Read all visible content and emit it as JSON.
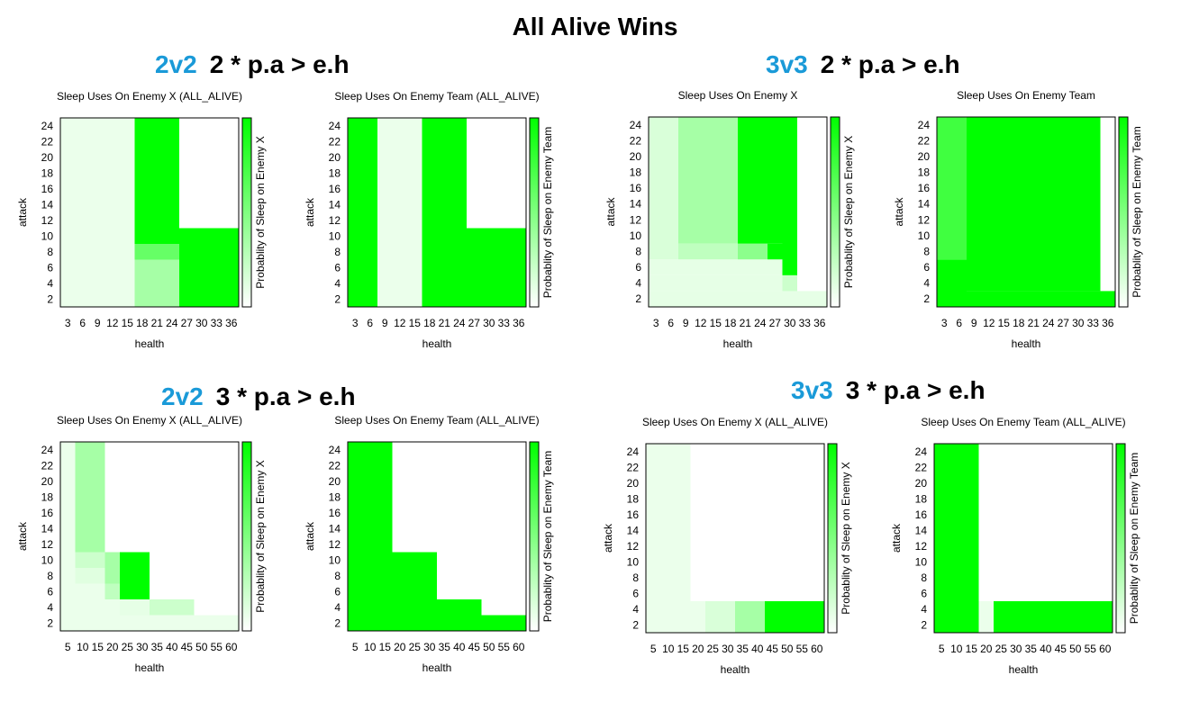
{
  "page": {
    "title": "All Alive Wins"
  },
  "colors": {
    "accent": "#1a9ad8",
    "max": "#00ff00",
    "min": "#ffffff"
  },
  "groups": [
    {
      "config": "2v2",
      "condition": "2 * p.a > e.h"
    },
    {
      "config": "3v3",
      "condition": "2 * p.a > e.h"
    },
    {
      "config": "2v2",
      "condition": "3 * p.a > e.h"
    },
    {
      "config": "3v3",
      "condition": "3 * p.a > e.h"
    }
  ],
  "chart_data": [
    {
      "type": "heatmap",
      "title": "Sleep Uses On Enemy X (ALL_ALIVE)",
      "xlabel": "health",
      "ylabel": "attack",
      "colorbar_label": "Probablity of Sleep on Enemy X",
      "xticks": [
        "3",
        "6",
        "9",
        "12",
        "15",
        "18",
        "21",
        "24",
        "27",
        "30",
        "33",
        "36"
      ],
      "yticks": [
        "2",
        "4",
        "6",
        "8",
        "10",
        "12",
        "14",
        "16",
        "18",
        "20",
        "22",
        "24"
      ],
      "xlim": [
        1.5,
        37.5
      ],
      "ylim": [
        1,
        25
      ],
      "clim": [
        0,
        1
      ],
      "cells": [
        {
          "x0": 1.5,
          "x1": 16.5,
          "y0": 1,
          "y1": 25,
          "v": 0.08
        },
        {
          "x0": 16.5,
          "x1": 25.5,
          "y0": 9,
          "y1": 25,
          "v": 1
        },
        {
          "x0": 16.5,
          "x1": 25.5,
          "y0": 7,
          "y1": 9,
          "v": 0.6
        },
        {
          "x0": 16.5,
          "x1": 25.5,
          "y0": 1,
          "y1": 7,
          "v": 0.35
        },
        {
          "x0": 25.5,
          "x1": 37.5,
          "y0": 1,
          "y1": 11,
          "v": 1
        }
      ]
    },
    {
      "type": "heatmap",
      "title": "Sleep Uses On Enemy Team (ALL_ALIVE)",
      "xlabel": "health",
      "ylabel": "attack",
      "colorbar_label": "Probablity of Sleep on Enemy Team",
      "xticks": [
        "3",
        "6",
        "9",
        "12",
        "15",
        "18",
        "21",
        "24",
        "27",
        "30",
        "33",
        "36"
      ],
      "yticks": [
        "2",
        "4",
        "6",
        "8",
        "10",
        "12",
        "14",
        "16",
        "18",
        "20",
        "22",
        "24"
      ],
      "xlim": [
        1.5,
        37.5
      ],
      "ylim": [
        1,
        25
      ],
      "clim": [
        0,
        1
      ],
      "cells": [
        {
          "x0": 1.5,
          "x1": 7.5,
          "y0": 1,
          "y1": 25,
          "v": 1
        },
        {
          "x0": 7.5,
          "x1": 16.5,
          "y0": 1,
          "y1": 25,
          "v": 0.08
        },
        {
          "x0": 16.5,
          "x1": 25.5,
          "y0": 1,
          "y1": 25,
          "v": 1
        },
        {
          "x0": 25.5,
          "x1": 37.5,
          "y0": 1,
          "y1": 11,
          "v": 1
        }
      ]
    },
    {
      "type": "heatmap",
      "title": "Sleep Uses On Enemy X",
      "xlabel": "health",
      "ylabel": "attack",
      "colorbar_label": "Probablity of Sleep on Enemy X",
      "xticks": [
        "3",
        "6",
        "9",
        "12",
        "15",
        "18",
        "21",
        "24",
        "27",
        "30",
        "33",
        "36"
      ],
      "yticks": [
        "2",
        "4",
        "6",
        "8",
        "10",
        "12",
        "14",
        "16",
        "18",
        "20",
        "22",
        "24"
      ],
      "xlim": [
        1.5,
        37.5
      ],
      "ylim": [
        1,
        25
      ],
      "clim": [
        0,
        1
      ],
      "cells": [
        {
          "x0": 1.5,
          "x1": 37.5,
          "y0": 1,
          "y1": 3,
          "v": 0.1
        },
        {
          "x0": 1.5,
          "x1": 31.5,
          "y0": 3,
          "y1": 5,
          "v": 0.1
        },
        {
          "x0": 1.5,
          "x1": 28.5,
          "y0": 5,
          "y1": 7,
          "v": 0.1
        },
        {
          "x0": 28.5,
          "x1": 31.5,
          "y0": 3,
          "y1": 5,
          "v": 0.2
        },
        {
          "x0": 28.5,
          "x1": 31.5,
          "y0": 5,
          "y1": 25,
          "v": 1
        },
        {
          "x0": 1.5,
          "x1": 7.5,
          "y0": 7,
          "y1": 25,
          "v": 0.15
        },
        {
          "x0": 7.5,
          "x1": 19.5,
          "y0": 7,
          "y1": 9,
          "v": 0.25
        },
        {
          "x0": 19.5,
          "x1": 25.5,
          "y0": 7,
          "y1": 9,
          "v": 0.45
        },
        {
          "x0": 7.5,
          "x1": 19.5,
          "y0": 9,
          "y1": 25,
          "v": 0.35
        },
        {
          "x0": 19.5,
          "x1": 28.5,
          "y0": 9,
          "y1": 25,
          "v": 1
        },
        {
          "x0": 25.5,
          "x1": 28.5,
          "y0": 7,
          "y1": 9,
          "v": 1
        }
      ]
    },
    {
      "type": "heatmap",
      "title": "Sleep Uses On Enemy Team",
      "xlabel": "health",
      "ylabel": "attack",
      "colorbar_label": "Probablity of Sleep on Enemy Team",
      "xticks": [
        "3",
        "6",
        "9",
        "12",
        "15",
        "18",
        "21",
        "24",
        "27",
        "30",
        "33",
        "36"
      ],
      "yticks": [
        "2",
        "4",
        "6",
        "8",
        "10",
        "12",
        "14",
        "16",
        "18",
        "20",
        "22",
        "24"
      ],
      "xlim": [
        1.5,
        37.5
      ],
      "ylim": [
        1,
        25
      ],
      "clim": [
        0,
        1
      ],
      "cells": [
        {
          "x0": 1.5,
          "x1": 7.5,
          "y0": 1,
          "y1": 7,
          "v": 1
        },
        {
          "x0": 1.5,
          "x1": 7.5,
          "y0": 7,
          "y1": 25,
          "v": 0.75
        },
        {
          "x0": 7.5,
          "x1": 34.5,
          "y0": 3,
          "y1": 25,
          "v": 1
        },
        {
          "x0": 7.5,
          "x1": 37.5,
          "y0": 1,
          "y1": 3,
          "v": 1
        }
      ]
    },
    {
      "type": "heatmap",
      "title": "Sleep Uses On Enemy X (ALL_ALIVE)",
      "xlabel": "health",
      "ylabel": "attack",
      "colorbar_label": "Probablity of Sleep on Enemy X",
      "xticks": [
        "5",
        "10",
        "15",
        "20",
        "25",
        "30",
        "35",
        "40",
        "45",
        "50",
        "55",
        "60"
      ],
      "yticks": [
        "2",
        "4",
        "6",
        "8",
        "10",
        "12",
        "14",
        "16",
        "18",
        "20",
        "22",
        "24"
      ],
      "xlim": [
        2.5,
        62.5
      ],
      "ylim": [
        1,
        25
      ],
      "clim": [
        0,
        1
      ],
      "cells": [
        {
          "x0": 2.5,
          "x1": 7.5,
          "y0": 1,
          "y1": 25,
          "v": 0.08
        },
        {
          "x0": 7.5,
          "x1": 17.5,
          "y0": 11,
          "y1": 25,
          "v": 0.35
        },
        {
          "x0": 7.5,
          "x1": 17.5,
          "y0": 9,
          "y1": 11,
          "v": 0.2
        },
        {
          "x0": 7.5,
          "x1": 17.5,
          "y0": 7,
          "y1": 9,
          "v": 0.12
        },
        {
          "x0": 7.5,
          "x1": 22.5,
          "y0": 1,
          "y1": 7,
          "v": 0.08
        },
        {
          "x0": 17.5,
          "x1": 22.5,
          "y0": 7,
          "y1": 11,
          "v": 0.35
        },
        {
          "x0": 17.5,
          "x1": 22.5,
          "y0": 5,
          "y1": 7,
          "v": 0.25
        },
        {
          "x0": 22.5,
          "x1": 32.5,
          "y0": 5,
          "y1": 11,
          "v": 1
        },
        {
          "x0": 22.5,
          "x1": 32.5,
          "y0": 3,
          "y1": 5,
          "v": 0.1
        },
        {
          "x0": 32.5,
          "x1": 47.5,
          "y0": 3,
          "y1": 5,
          "v": 0.2
        },
        {
          "x0": 22.5,
          "x1": 62.5,
          "y0": 1,
          "y1": 3,
          "v": 0.08
        }
      ]
    },
    {
      "type": "heatmap",
      "title": "Sleep Uses On Enemy Team (ALL_ALIVE)",
      "xlabel": "health",
      "ylabel": "attack",
      "colorbar_label": "Probablity of Sleep on Enemy Team",
      "xticks": [
        "5",
        "10",
        "15",
        "20",
        "25",
        "30",
        "35",
        "40",
        "45",
        "50",
        "55",
        "60"
      ],
      "yticks": [
        "2",
        "4",
        "6",
        "8",
        "10",
        "12",
        "14",
        "16",
        "18",
        "20",
        "22",
        "24"
      ],
      "xlim": [
        2.5,
        62.5
      ],
      "ylim": [
        1,
        25
      ],
      "clim": [
        0,
        1
      ],
      "cells": [
        {
          "x0": 2.5,
          "x1": 17.5,
          "y0": 1,
          "y1": 25,
          "v": 1
        },
        {
          "x0": 17.5,
          "x1": 32.5,
          "y0": 1,
          "y1": 11,
          "v": 1
        },
        {
          "x0": 32.5,
          "x1": 47.5,
          "y0": 1,
          "y1": 5,
          "v": 1
        },
        {
          "x0": 47.5,
          "x1": 62.5,
          "y0": 1,
          "y1": 3,
          "v": 1
        }
      ]
    },
    {
      "type": "heatmap",
      "title": "Sleep Uses On Enemy X (ALL_ALIVE)",
      "xlabel": "health",
      "ylabel": "attack",
      "colorbar_label": "Probablity of Sleep on Enemy X",
      "xticks": [
        "5",
        "10",
        "15",
        "20",
        "25",
        "30",
        "35",
        "40",
        "45",
        "50",
        "55",
        "60"
      ],
      "yticks": [
        "2",
        "4",
        "6",
        "8",
        "10",
        "12",
        "14",
        "16",
        "18",
        "20",
        "22",
        "24"
      ],
      "xlim": [
        2.5,
        62.5
      ],
      "ylim": [
        1,
        25
      ],
      "clim": [
        0,
        1
      ],
      "cells": [
        {
          "x0": 2.5,
          "x1": 17.5,
          "y0": 5,
          "y1": 25,
          "v": 0.08
        },
        {
          "x0": 2.5,
          "x1": 22.5,
          "y0": 1,
          "y1": 5,
          "v": 0.08
        },
        {
          "x0": 22.5,
          "x1": 32.5,
          "y0": 1,
          "y1": 5,
          "v": 0.15
        },
        {
          "x0": 32.5,
          "x1": 42.5,
          "y0": 1,
          "y1": 5,
          "v": 0.35
        },
        {
          "x0": 42.5,
          "x1": 62.5,
          "y0": 1,
          "y1": 5,
          "v": 1
        }
      ]
    },
    {
      "type": "heatmap",
      "title": "Sleep Uses On Enemy Team (ALL_ALIVE)",
      "xlabel": "health",
      "ylabel": "attack",
      "colorbar_label": "Probablity of Sleep on Enemy Team",
      "xticks": [
        "5",
        "10",
        "15",
        "20",
        "25",
        "30",
        "35",
        "40",
        "45",
        "50",
        "55",
        "60"
      ],
      "yticks": [
        "2",
        "4",
        "6",
        "8",
        "10",
        "12",
        "14",
        "16",
        "18",
        "20",
        "22",
        "24"
      ],
      "xlim": [
        2.5,
        62.5
      ],
      "ylim": [
        1,
        25
      ],
      "clim": [
        0,
        1
      ],
      "cells": [
        {
          "x0": 2.5,
          "x1": 17.5,
          "y0": 1,
          "y1": 25,
          "v": 1
        },
        {
          "x0": 17.5,
          "x1": 22.5,
          "y0": 1,
          "y1": 5,
          "v": 0.08
        },
        {
          "x0": 22.5,
          "x1": 62.5,
          "y0": 1,
          "y1": 5,
          "v": 1
        }
      ]
    }
  ]
}
